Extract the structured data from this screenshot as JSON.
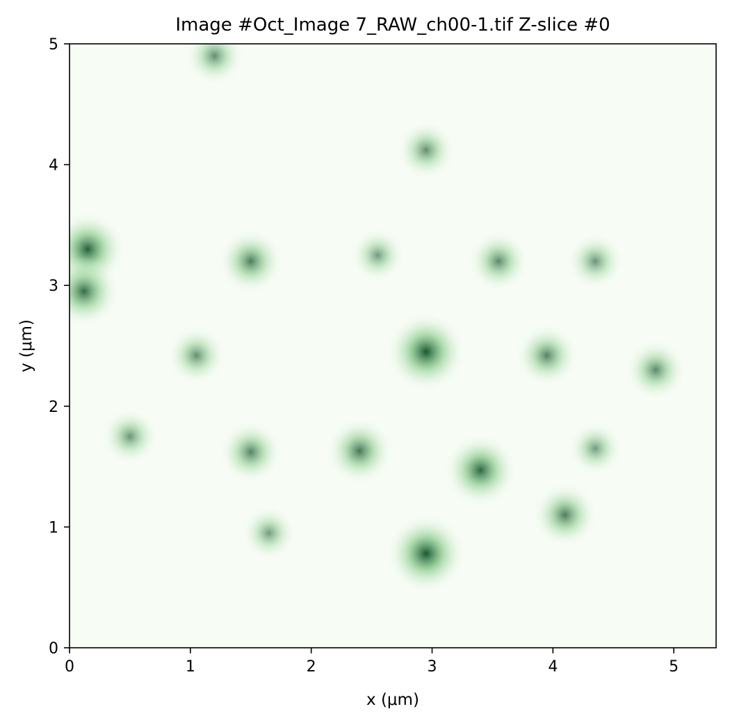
{
  "chart_data": {
    "type": "heatmap",
    "title": "Image #Oct_Image 7_RAW_ch00-1.tif Z-slice #0",
    "xlabel": "x (μm)",
    "ylabel": "y (μm)",
    "xlim": [
      0,
      5.35
    ],
    "ylim": [
      0,
      5
    ],
    "xticks": [
      0,
      1,
      2,
      3,
      4,
      5
    ],
    "yticks": [
      0,
      1,
      2,
      3,
      4,
      5
    ],
    "colormap": "Greens",
    "colors": {
      "low": "#f7fcf5",
      "mid": "#74c476",
      "high": "#00441b"
    },
    "grid": false,
    "spots": [
      {
        "x": 2.95,
        "y": 2.45,
        "intensity": 0.95
      },
      {
        "x": 2.95,
        "y": 0.78,
        "intensity": 0.95
      },
      {
        "x": 3.4,
        "y": 1.47,
        "intensity": 0.8
      },
      {
        "x": 2.4,
        "y": 1.63,
        "intensity": 0.65
      },
      {
        "x": 1.5,
        "y": 1.62,
        "intensity": 0.55
      },
      {
        "x": 1.5,
        "y": 3.2,
        "intensity": 0.6
      },
      {
        "x": 3.55,
        "y": 3.2,
        "intensity": 0.5
      },
      {
        "x": 2.55,
        "y": 3.25,
        "intensity": 0.35
      },
      {
        "x": 4.35,
        "y": 3.2,
        "intensity": 0.4
      },
      {
        "x": 3.95,
        "y": 2.42,
        "intensity": 0.55
      },
      {
        "x": 4.85,
        "y": 2.3,
        "intensity": 0.5
      },
      {
        "x": 1.05,
        "y": 2.42,
        "intensity": 0.45
      },
      {
        "x": 4.1,
        "y": 1.1,
        "intensity": 0.6
      },
      {
        "x": 2.95,
        "y": 4.12,
        "intensity": 0.45
      },
      {
        "x": 0.5,
        "y": 1.75,
        "intensity": 0.4
      },
      {
        "x": 1.65,
        "y": 0.95,
        "intensity": 0.35
      },
      {
        "x": 4.35,
        "y": 1.65,
        "intensity": 0.35
      },
      {
        "x": 0.15,
        "y": 3.3,
        "intensity": 0.85
      },
      {
        "x": 0.12,
        "y": 2.95,
        "intensity": 0.75
      },
      {
        "x": 1.2,
        "y": 4.9,
        "intensity": 0.45
      }
    ]
  }
}
